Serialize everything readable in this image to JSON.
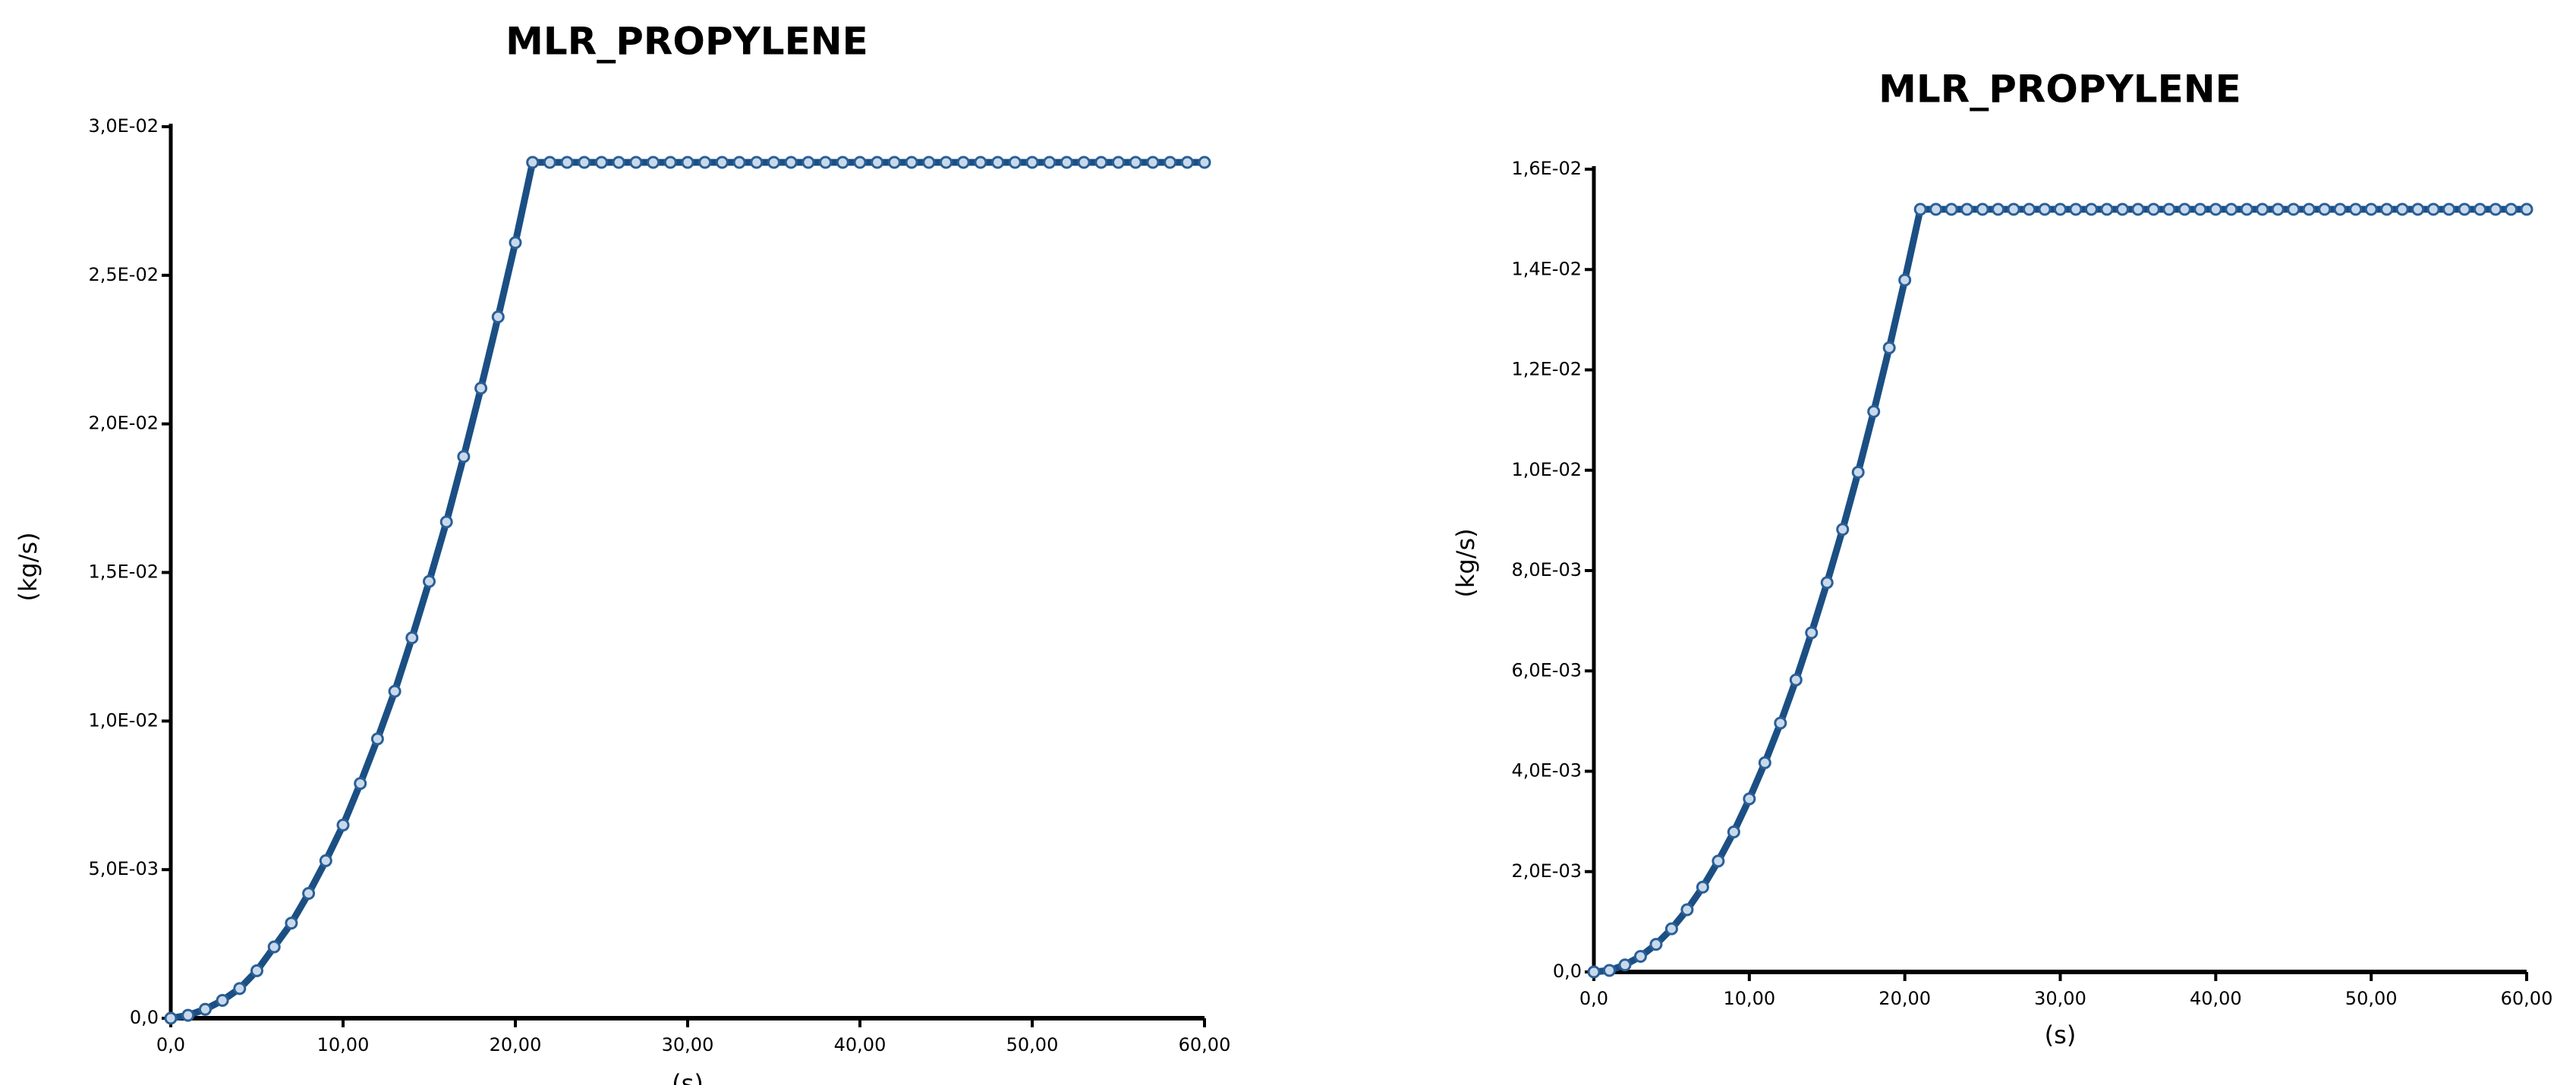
{
  "chart_data": [
    {
      "type": "line",
      "title": "MLR_PROPYLENE",
      "xlabel": "(s)",
      "ylabel": "(kg/s)",
      "x": [
        0,
        1,
        2,
        3,
        4,
        5,
        6,
        7,
        8,
        9,
        10,
        11,
        12,
        13,
        14,
        15,
        16,
        17,
        18,
        19,
        20,
        21,
        22,
        23,
        24,
        25,
        26,
        27,
        28,
        29,
        30,
        31,
        32,
        33,
        34,
        35,
        36,
        37,
        38,
        39,
        40,
        41,
        42,
        43,
        44,
        45,
        46,
        47,
        48,
        49,
        50,
        51,
        52,
        53,
        54,
        55,
        56,
        57,
        58,
        59,
        60
      ],
      "series": [
        {
          "color": "#1b4f84",
          "values": [
            0,
            0.0001,
            0.0003,
            0.0006,
            0.001,
            0.0016,
            0.0024,
            0.0032,
            0.0042,
            0.0053,
            0.0065,
            0.0079,
            0.0094,
            0.011,
            0.0128,
            0.0147,
            0.0167,
            0.0189,
            0.0212,
            0.0236,
            0.0261,
            0.0288,
            0.0288,
            0.0288,
            0.0288,
            0.0288,
            0.0288,
            0.0288,
            0.0288,
            0.0288,
            0.0288,
            0.0288,
            0.0288,
            0.0288,
            0.0288,
            0.0288,
            0.0288,
            0.0288,
            0.0288,
            0.0288,
            0.0288,
            0.0288,
            0.0288,
            0.0288,
            0.0288,
            0.0288,
            0.0288,
            0.0288,
            0.0288,
            0.0288,
            0.0288,
            0.0288,
            0.0288,
            0.0288,
            0.0288,
            0.0288,
            0.0288,
            0.0288,
            0.0288,
            0.0288,
            0.0288
          ]
        }
      ],
      "xlim": [
        0,
        60
      ],
      "ylim": [
        0,
        0.03
      ],
      "xticks": [
        {
          "value": 0,
          "label": "0,0"
        },
        {
          "value": 10,
          "label": "10,00"
        },
        {
          "value": 20,
          "label": "20,00"
        },
        {
          "value": 30,
          "label": "30,00"
        },
        {
          "value": 40,
          "label": "40,00"
        },
        {
          "value": 50,
          "label": "50,00"
        },
        {
          "value": 60,
          "label": "60,00"
        }
      ],
      "yticks": [
        {
          "value": 0,
          "label": "0,0"
        },
        {
          "value": 0.005,
          "label": "5,0E-03"
        },
        {
          "value": 0.01,
          "label": "1,0E-02"
        },
        {
          "value": 0.015,
          "label": "1,5E-02"
        },
        {
          "value": 0.02,
          "label": "2,0E-02"
        },
        {
          "value": 0.025,
          "label": "2,5E-02"
        },
        {
          "value": 0.03,
          "label": "3,0E-02"
        }
      ],
      "grid": false
    },
    {
      "type": "line",
      "title": "MLR_PROPYLENE",
      "xlabel": "(s)",
      "ylabel": "(kg/s)",
      "x": [
        0,
        1,
        2,
        3,
        4,
        5,
        6,
        7,
        8,
        9,
        10,
        11,
        12,
        13,
        14,
        15,
        16,
        17,
        18,
        19,
        20,
        21,
        22,
        23,
        24,
        25,
        26,
        27,
        28,
        29,
        30,
        31,
        32,
        33,
        34,
        35,
        36,
        37,
        38,
        39,
        40,
        41,
        42,
        43,
        44,
        45,
        46,
        47,
        48,
        49,
        50,
        51,
        52,
        53,
        54,
        55,
        56,
        57,
        58,
        59,
        60
      ],
      "series": [
        {
          "color": "#1b4f84",
          "values": [
            0,
            3e-05,
            0.00014,
            0.00031,
            0.00055,
            0.00086,
            0.00124,
            0.00169,
            0.00221,
            0.00279,
            0.00345,
            0.00417,
            0.00496,
            0.00582,
            0.00676,
            0.00776,
            0.00882,
            0.00996,
            0.01117,
            0.01244,
            0.01379,
            0.0152,
            0.0152,
            0.0152,
            0.0152,
            0.0152,
            0.0152,
            0.0152,
            0.0152,
            0.0152,
            0.0152,
            0.0152,
            0.0152,
            0.0152,
            0.0152,
            0.0152,
            0.0152,
            0.0152,
            0.0152,
            0.0152,
            0.0152,
            0.0152,
            0.0152,
            0.0152,
            0.0152,
            0.0152,
            0.0152,
            0.0152,
            0.0152,
            0.0152,
            0.0152,
            0.0152,
            0.0152,
            0.0152,
            0.0152,
            0.0152,
            0.0152,
            0.0152,
            0.0152,
            0.0152,
            0.0152
          ]
        }
      ],
      "xlim": [
        0,
        60
      ],
      "ylim": [
        0,
        0.016
      ],
      "xticks": [
        {
          "value": 0,
          "label": "0,0"
        },
        {
          "value": 10,
          "label": "10,00"
        },
        {
          "value": 20,
          "label": "20,00"
        },
        {
          "value": 30,
          "label": "30,00"
        },
        {
          "value": 40,
          "label": "40,00"
        },
        {
          "value": 50,
          "label": "50,00"
        },
        {
          "value": 60,
          "label": "60,00"
        }
      ],
      "yticks": [
        {
          "value": 0,
          "label": "0,0"
        },
        {
          "value": 0.002,
          "label": "2,0E-03"
        },
        {
          "value": 0.004,
          "label": "4,0E-03"
        },
        {
          "value": 0.006,
          "label": "6,0E-03"
        },
        {
          "value": 0.008,
          "label": "8,0E-03"
        },
        {
          "value": 0.01,
          "label": "1,0E-02"
        },
        {
          "value": 0.012,
          "label": "1,2E-02"
        },
        {
          "value": 0.014,
          "label": "1,4E-02"
        },
        {
          "value": 0.016,
          "label": "1,6E-02"
        }
      ],
      "grid": false
    }
  ]
}
